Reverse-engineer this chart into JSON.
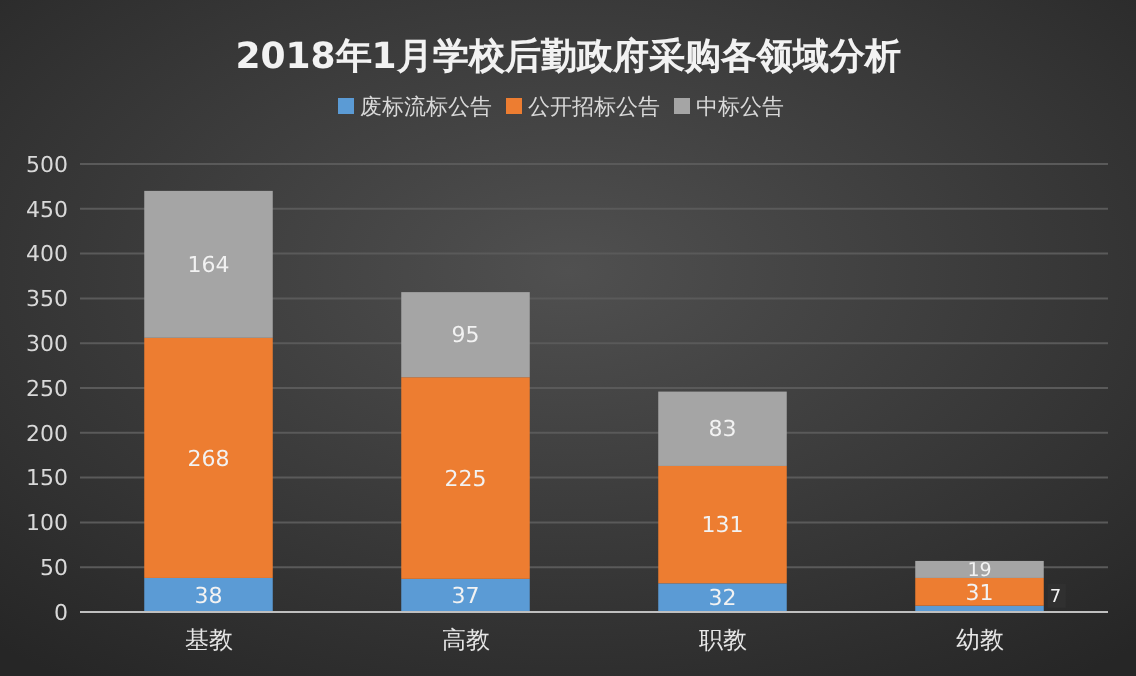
{
  "chart_data": {
    "type": "bar",
    "title": "2018年1月学校后勤政府采购各领域分析",
    "categories": [
      "基教",
      "高教",
      "职教",
      "幼教"
    ],
    "stacked": true,
    "series": [
      {
        "name": "废标流标公告",
        "color": "#5b9bd5",
        "values": [
          38,
          37,
          32,
          7
        ]
      },
      {
        "name": "公开招标公告",
        "color": "#ed7d31",
        "values": [
          268,
          225,
          131,
          31
        ]
      },
      {
        "name": "中标公告",
        "color": "#a5a5a5",
        "values": [
          164,
          95,
          83,
          19
        ]
      }
    ],
    "ylim": [
      0,
      500
    ],
    "yticks": [
      0,
      50,
      100,
      150,
      200,
      250,
      300,
      350,
      400,
      450,
      500
    ],
    "grid": "y",
    "legend": "top",
    "data_labels": true
  }
}
